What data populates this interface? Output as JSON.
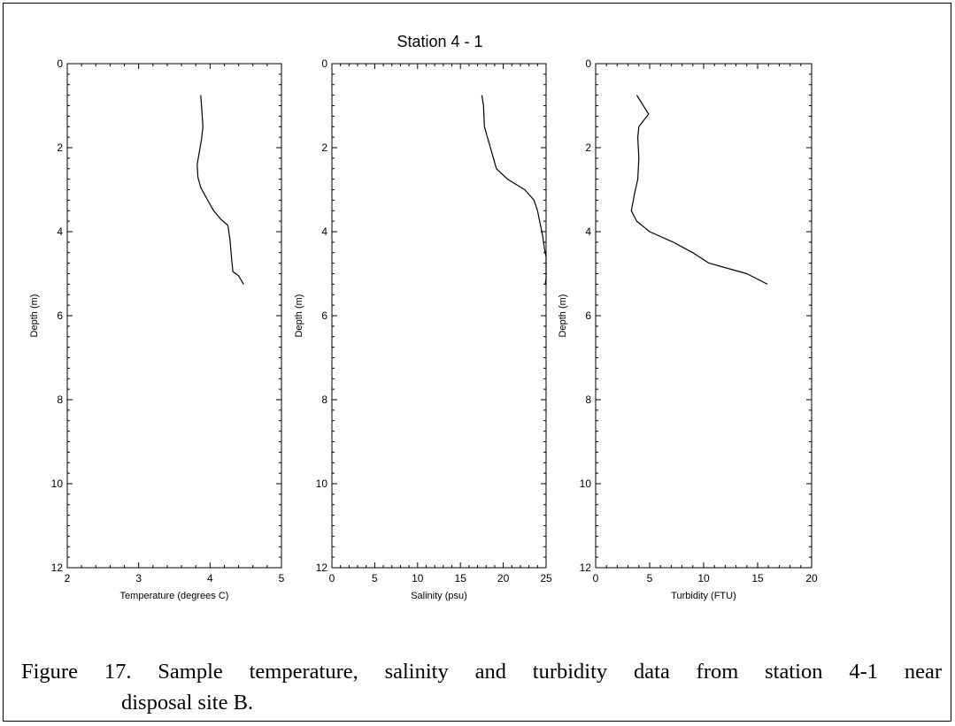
{
  "figure_title": "Station 4 - 1",
  "caption": {
    "line1": "Figure 17.  Sample temperature, salinity and turbidity data from station 4-1 near",
    "line2": "disposal site B."
  },
  "chart_data": [
    {
      "type": "line",
      "xlabel": "Temperature (degrees C)",
      "ylabel": "Depth (m)",
      "xlim": [
        2,
        5
      ],
      "ylim": [
        0,
        12
      ],
      "y_inverted": true,
      "x_major_ticks": [
        2,
        3,
        4,
        5
      ],
      "y_major_ticks": [
        0,
        2,
        4,
        6,
        8,
        10,
        12
      ],
      "grid": false,
      "line_color": "#000000",
      "points": [
        {
          "x": 3.87,
          "y": 0.75
        },
        {
          "x": 3.88,
          "y": 1.0
        },
        {
          "x": 3.9,
          "y": 1.5
        },
        {
          "x": 3.88,
          "y": 1.8
        },
        {
          "x": 3.85,
          "y": 2.1
        },
        {
          "x": 3.82,
          "y": 2.4
        },
        {
          "x": 3.83,
          "y": 2.7
        },
        {
          "x": 3.87,
          "y": 2.95
        },
        {
          "x": 3.95,
          "y": 3.2
        },
        {
          "x": 4.05,
          "y": 3.5
        },
        {
          "x": 4.15,
          "y": 3.7
        },
        {
          "x": 4.25,
          "y": 3.85
        },
        {
          "x": 4.28,
          "y": 4.2
        },
        {
          "x": 4.3,
          "y": 4.6
        },
        {
          "x": 4.32,
          "y": 4.95
        },
        {
          "x": 4.4,
          "y": 5.05
        },
        {
          "x": 4.47,
          "y": 5.25
        }
      ]
    },
    {
      "type": "line",
      "xlabel": "Salinity (psu)",
      "ylabel": "Depth (m)",
      "xlim": [
        0,
        25
      ],
      "ylim": [
        0,
        12
      ],
      "y_inverted": true,
      "x_major_ticks": [
        0,
        5,
        10,
        15,
        20,
        25
      ],
      "y_major_ticks": [
        0,
        2,
        4,
        6,
        8,
        10,
        12
      ],
      "grid": false,
      "line_color": "#000000",
      "points": [
        {
          "x": 17.5,
          "y": 0.75
        },
        {
          "x": 17.7,
          "y": 1.0
        },
        {
          "x": 17.8,
          "y": 1.5
        },
        {
          "x": 18.5,
          "y": 2.0
        },
        {
          "x": 19.2,
          "y": 2.5
        },
        {
          "x": 20.5,
          "y": 2.75
        },
        {
          "x": 22.5,
          "y": 3.0
        },
        {
          "x": 23.6,
          "y": 3.25
        },
        {
          "x": 24.0,
          "y": 3.5
        },
        {
          "x": 24.3,
          "y": 3.8
        },
        {
          "x": 24.6,
          "y": 4.1
        },
        {
          "x": 24.8,
          "y": 4.4
        },
        {
          "x": 25.0,
          "y": 4.6
        },
        {
          "x": 25.0,
          "y": 5.1
        },
        {
          "x": 24.9,
          "y": 5.25
        }
      ]
    },
    {
      "type": "line",
      "xlabel": "Turbidity (FTU)",
      "ylabel": "Depth (m)",
      "xlim": [
        0,
        20
      ],
      "ylim": [
        0,
        12
      ],
      "y_inverted": true,
      "x_major_ticks": [
        0,
        5,
        10,
        15,
        20
      ],
      "y_major_ticks": [
        0,
        2,
        4,
        6,
        8,
        10,
        12
      ],
      "grid": false,
      "line_color": "#000000",
      "points": [
        {
          "x": 3.8,
          "y": 0.75
        },
        {
          "x": 4.9,
          "y": 1.2
        },
        {
          "x": 4.0,
          "y": 1.5
        },
        {
          "x": 3.9,
          "y": 1.75
        },
        {
          "x": 4.0,
          "y": 2.25
        },
        {
          "x": 3.9,
          "y": 2.75
        },
        {
          "x": 3.6,
          "y": 3.1
        },
        {
          "x": 3.3,
          "y": 3.5
        },
        {
          "x": 3.8,
          "y": 3.75
        },
        {
          "x": 5.0,
          "y": 4.0
        },
        {
          "x": 7.2,
          "y": 4.25
        },
        {
          "x": 9.0,
          "y": 4.5
        },
        {
          "x": 10.5,
          "y": 4.75
        },
        {
          "x": 14.0,
          "y": 5.0
        },
        {
          "x": 15.9,
          "y": 5.25
        }
      ]
    }
  ]
}
